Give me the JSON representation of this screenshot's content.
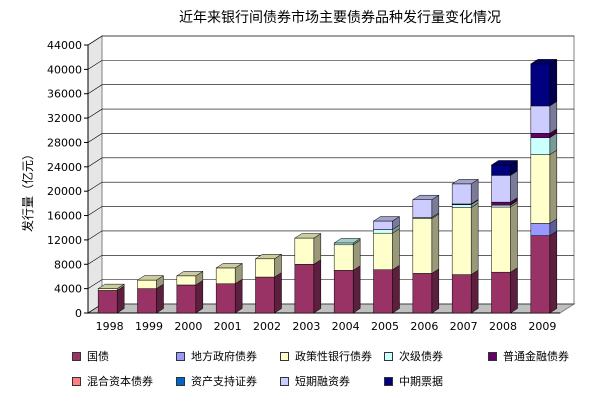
{
  "chart_data": {
    "type": "bar",
    "stacked": true,
    "style": "3d",
    "title": "近年来银行间债券市场主要债券品种发行量变化情况",
    "ylabel": "发行量（亿元）",
    "xlabel": "",
    "ylim": [
      0,
      44000
    ],
    "yticks": [
      0,
      4000,
      8000,
      12000,
      16000,
      20000,
      24000,
      28000,
      32000,
      36000,
      40000,
      44000
    ],
    "grid": true,
    "legend_position": "bottom",
    "categories": [
      "1998",
      "1999",
      "2000",
      "2001",
      "2002",
      "2003",
      "2004",
      "2005",
      "2006",
      "2007",
      "2008",
      "2009"
    ],
    "series": [
      {
        "name": "国债",
        "color": "#993366",
        "values": [
          3700,
          4000,
          4600,
          4800,
          5900,
          8000,
          7000,
          7100,
          6500,
          6300,
          6700,
          12700
        ]
      },
      {
        "name": "地方政府债券",
        "color": "#9999ff",
        "values": [
          0,
          0,
          0,
          0,
          0,
          0,
          0,
          0,
          0,
          0,
          0,
          2000
        ]
      },
      {
        "name": "政策性银行债券",
        "color": "#ffffcc",
        "values": [
          300,
          1400,
          1500,
          2600,
          3000,
          4300,
          4200,
          6000,
          9000,
          11000,
          10700,
          11300
        ]
      },
      {
        "name": "次级债券",
        "color": "#ccffff",
        "values": [
          0,
          0,
          0,
          0,
          0,
          0,
          300,
          600,
          200,
          500,
          300,
          2800
        ]
      },
      {
        "name": "普通金融债券",
        "color": "#660066",
        "values": [
          0,
          0,
          0,
          0,
          0,
          0,
          0,
          0,
          0,
          100,
          500,
          700
        ]
      },
      {
        "name": "混合资本债券",
        "color": "#ff8080",
        "values": [
          0,
          0,
          0,
          0,
          0,
          0,
          0,
          0,
          0,
          0,
          0,
          0
        ]
      },
      {
        "name": "资产支持证券",
        "color": "#0066cc",
        "values": [
          0,
          0,
          0,
          0,
          0,
          0,
          0,
          0,
          0,
          0,
          0,
          0
        ]
      },
      {
        "name": "短期融资券",
        "color": "#ccccff",
        "values": [
          0,
          0,
          0,
          0,
          0,
          0,
          0,
          1400,
          2900,
          3300,
          4400,
          4500
        ]
      },
      {
        "name": "中期票据",
        "color": "#000080",
        "values": [
          0,
          0,
          0,
          0,
          0,
          0,
          0,
          0,
          0,
          0,
          1700,
          6900
        ]
      }
    ]
  }
}
